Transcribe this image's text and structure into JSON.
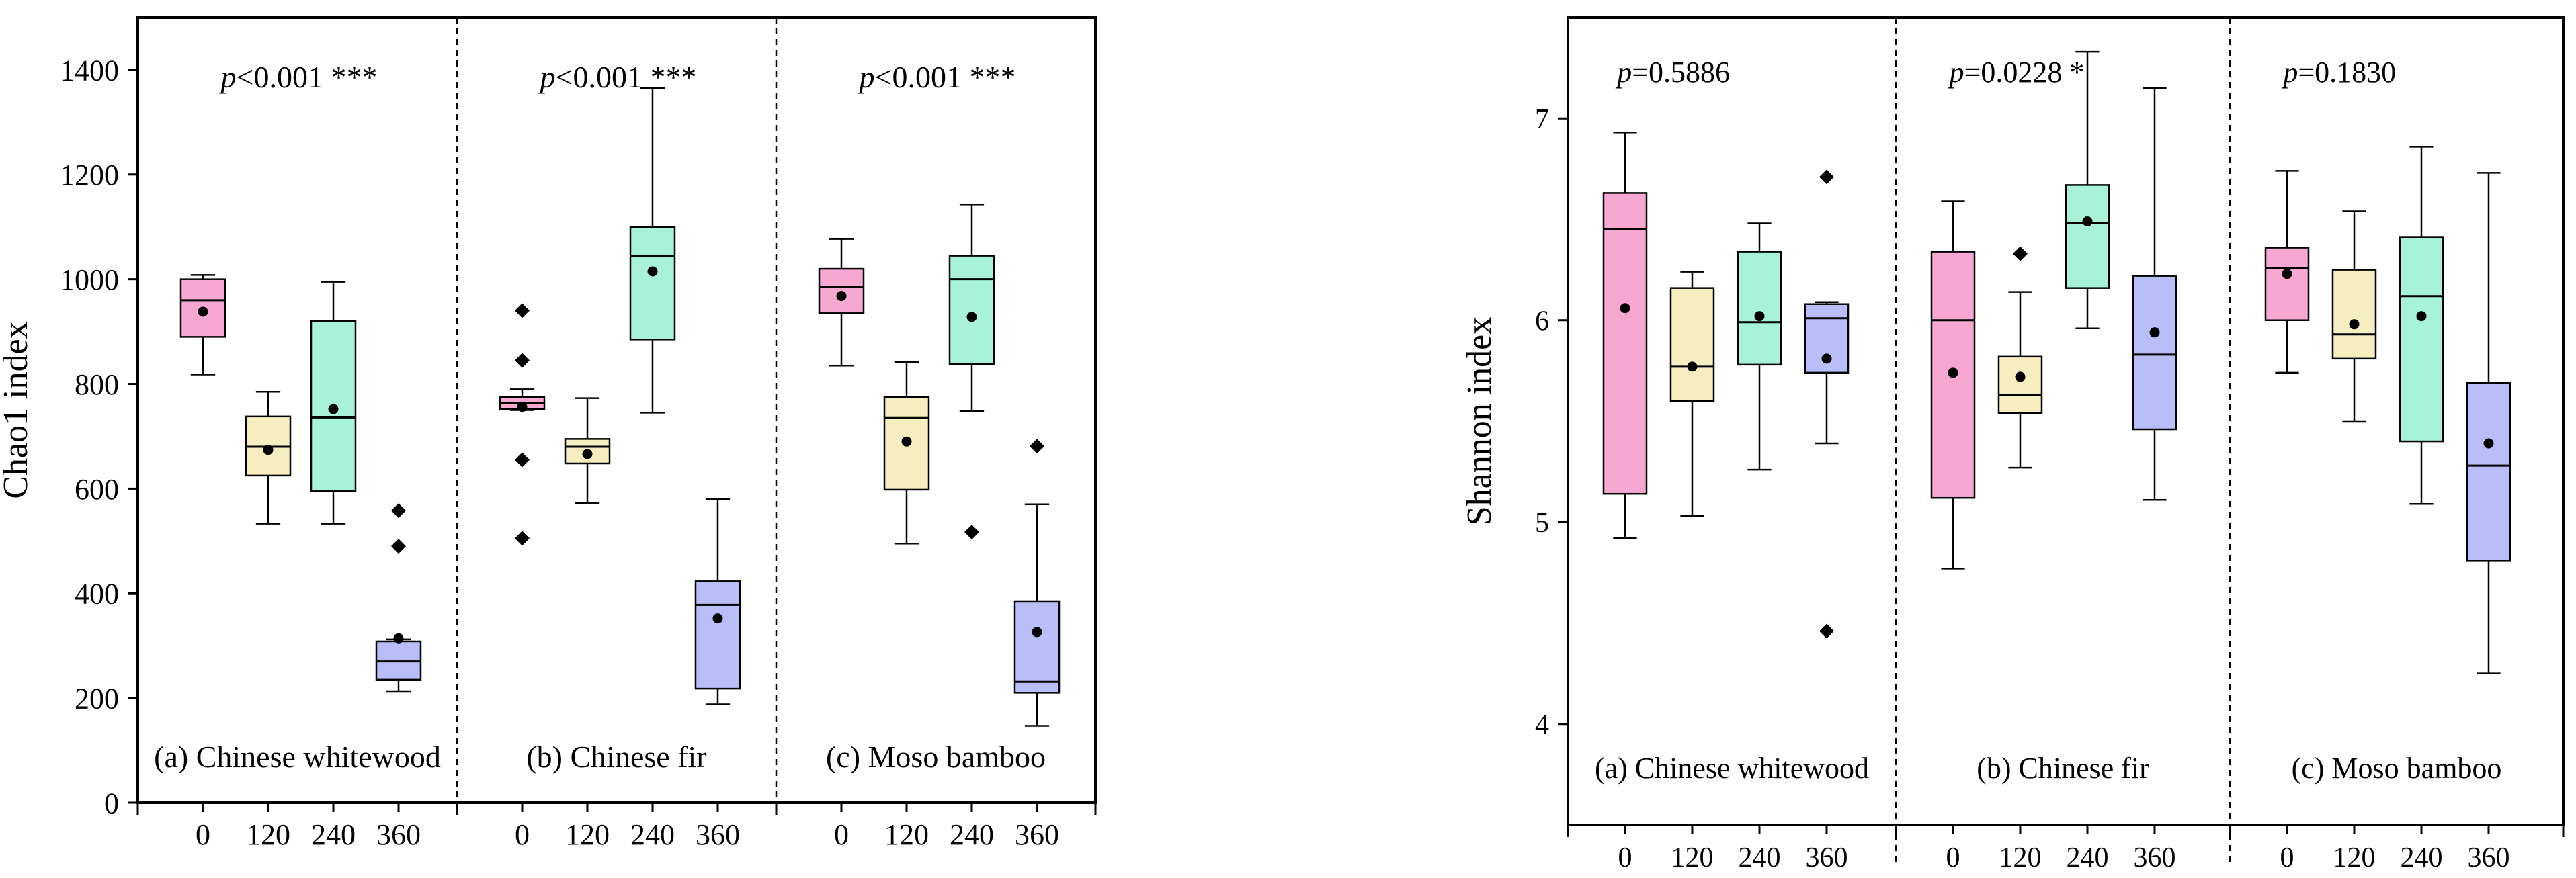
{
  "chart_data": [
    {
      "type": "boxplot",
      "ylabel": "Chao1 index",
      "ylim": [
        0,
        1500
      ],
      "yticks": [
        0,
        200,
        400,
        600,
        800,
        1000,
        1200,
        1400
      ],
      "categories": [
        "0",
        "120",
        "240",
        "360"
      ],
      "series_colors": [
        "#f7a8d2",
        "#f6eec0",
        "#a8f2da",
        "#b9bef8"
      ],
      "groups": [
        {
          "label": "(a) Chinese whitewood",
          "pvalue": {
            "p": "p",
            "text": "<0.001 ***"
          },
          "boxes": [
            {
              "cat": "0",
              "whisker_low": 818,
              "q1": 890,
              "median": 960,
              "q3": 1000,
              "whisker_high": 1008,
              "mean": 938,
              "outliers": []
            },
            {
              "cat": "120",
              "whisker_low": 533,
              "q1": 625,
              "median": 680,
              "q3": 738,
              "whisker_high": 785,
              "mean": 674,
              "outliers": []
            },
            {
              "cat": "240",
              "whisker_low": 533,
              "q1": 595,
              "median": 736,
              "q3": 920,
              "whisker_high": 995,
              "mean": 752,
              "outliers": []
            },
            {
              "cat": "360",
              "whisker_low": 213,
              "q1": 235,
              "median": 270,
              "q3": 308,
              "whisker_high": 312,
              "mean": 314,
              "outliers": [
                490,
                558
              ]
            }
          ]
        },
        {
          "label": "(b) Chinese fir",
          "pvalue": {
            "p": "p",
            "text": "<0.001 ***"
          },
          "boxes": [
            {
              "cat": "0",
              "whisker_low": 750,
              "q1": 752,
              "median": 763,
              "q3": 775,
              "whisker_high": 790,
              "mean": 756,
              "outliers": [
                940,
                845,
                655,
                505
              ]
            },
            {
              "cat": "120",
              "whisker_low": 572,
              "q1": 648,
              "median": 680,
              "q3": 695,
              "whisker_high": 773,
              "mean": 666,
              "outliers": []
            },
            {
              "cat": "240",
              "whisker_low": 745,
              "q1": 885,
              "median": 1045,
              "q3": 1100,
              "whisker_high": 1365,
              "mean": 1015,
              "outliers": []
            },
            {
              "cat": "360",
              "whisker_low": 188,
              "q1": 218,
              "median": 378,
              "q3": 423,
              "whisker_high": 580,
              "mean": 352,
              "outliers": []
            }
          ]
        },
        {
          "label": "(c) Moso bamboo",
          "pvalue": {
            "p": "p",
            "text": "<0.001 ***"
          },
          "boxes": [
            {
              "cat": "0",
              "whisker_low": 835,
              "q1": 935,
              "median": 985,
              "q3": 1020,
              "whisker_high": 1077,
              "mean": 968,
              "outliers": []
            },
            {
              "cat": "120",
              "whisker_low": 495,
              "q1": 598,
              "median": 735,
              "q3": 775,
              "whisker_high": 842,
              "mean": 690,
              "outliers": []
            },
            {
              "cat": "240",
              "whisker_low": 748,
              "q1": 838,
              "median": 1000,
              "q3": 1045,
              "whisker_high": 1143,
              "mean": 928,
              "outliers": [
                517
              ]
            },
            {
              "cat": "360",
              "whisker_low": 147,
              "q1": 210,
              "median": 232,
              "q3": 385,
              "whisker_high": 570,
              "mean": 326,
              "outliers": [
                681
              ]
            }
          ]
        }
      ]
    },
    {
      "type": "boxplot",
      "ylabel": "Shannon index",
      "ylim": [
        3.5,
        7.5
      ],
      "yticks": [
        4,
        5,
        6,
        7
      ],
      "categories": [
        "0",
        "120",
        "240",
        "360"
      ],
      "series_colors": [
        "#f7a8d2",
        "#f6eec0",
        "#a8f2da",
        "#b9bef8"
      ],
      "groups": [
        {
          "label": "(a) Chinese whitewood",
          "pvalue": {
            "p": "p",
            "text": "=0.5886"
          },
          "boxes": [
            {
              "cat": "0",
              "whisker_low": 4.92,
              "q1": 5.14,
              "median": 6.45,
              "q3": 6.63,
              "whisker_high": 6.93,
              "mean": 6.06,
              "outliers": []
            },
            {
              "cat": "120",
              "whisker_low": 5.03,
              "q1": 5.6,
              "median": 5.77,
              "q3": 6.16,
              "whisker_high": 6.24,
              "mean": 5.77,
              "outliers": []
            },
            {
              "cat": "240",
              "whisker_low": 5.26,
              "q1": 5.78,
              "median": 5.99,
              "q3": 6.34,
              "whisker_high": 6.48,
              "mean": 6.02,
              "outliers": []
            },
            {
              "cat": "360",
              "whisker_low": 5.39,
              "q1": 5.74,
              "median": 6.01,
              "q3": 6.08,
              "whisker_high": 6.09,
              "mean": 5.81,
              "outliers": [
                6.71,
                4.46
              ]
            }
          ]
        },
        {
          "label": "(b) Chinese fir",
          "pvalue": {
            "p": "p",
            "text": "=0.0228 *"
          },
          "boxes": [
            {
              "cat": "0",
              "whisker_low": 4.77,
              "q1": 5.12,
              "median": 6.0,
              "q3": 6.34,
              "whisker_high": 6.59,
              "mean": 5.74,
              "outliers": []
            },
            {
              "cat": "120",
              "whisker_low": 5.27,
              "q1": 5.54,
              "median": 5.63,
              "q3": 5.82,
              "whisker_high": 6.14,
              "mean": 5.72,
              "outliers": [
                6.33
              ]
            },
            {
              "cat": "240",
              "whisker_low": 5.96,
              "q1": 6.16,
              "median": 6.48,
              "q3": 6.67,
              "whisker_high": 7.33,
              "mean": 6.49,
              "outliers": []
            },
            {
              "cat": "360",
              "whisker_low": 5.11,
              "q1": 5.46,
              "median": 5.83,
              "q3": 6.22,
              "whisker_high": 7.15,
              "mean": 5.94,
              "outliers": []
            }
          ]
        },
        {
          "label": "(c) Moso bamboo",
          "pvalue": {
            "p": "p",
            "text": "=0.1830"
          },
          "boxes": [
            {
              "cat": "0",
              "whisker_low": 5.74,
              "q1": 6.0,
              "median": 6.26,
              "q3": 6.36,
              "whisker_high": 6.74,
              "mean": 6.23,
              "outliers": []
            },
            {
              "cat": "120",
              "whisker_low": 5.5,
              "q1": 5.81,
              "median": 5.93,
              "q3": 6.25,
              "whisker_high": 6.54,
              "mean": 5.98,
              "outliers": []
            },
            {
              "cat": "240",
              "whisker_low": 5.09,
              "q1": 5.4,
              "median": 6.12,
              "q3": 6.41,
              "whisker_high": 6.86,
              "mean": 6.02,
              "outliers": []
            },
            {
              "cat": "360",
              "whisker_low": 4.25,
              "q1": 4.81,
              "median": 5.28,
              "q3": 5.69,
              "whisker_high": 6.73,
              "mean": 5.39,
              "outliers": []
            }
          ]
        }
      ]
    }
  ]
}
